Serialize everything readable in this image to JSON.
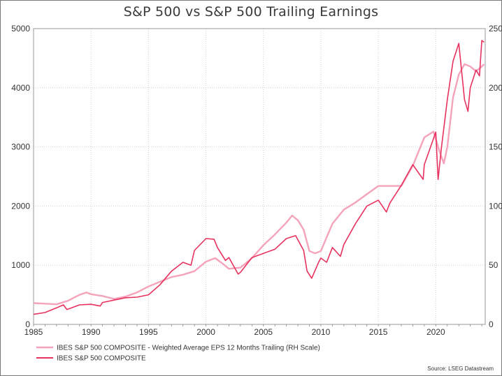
{
  "chart_data": {
    "type": "line",
    "title": "S&P 500 vs S&P 500 Trailing Earnings",
    "source": "Source: LSEG Datastream",
    "x_ticks": [
      "1985",
      "1990",
      "1995",
      "2000",
      "2005",
      "2010",
      "2015",
      "2020"
    ],
    "xlim": [
      1985,
      2024.3
    ],
    "y_left": {
      "lim": [
        0,
        5000
      ],
      "ticks": [
        "0",
        "1000",
        "2000",
        "3000",
        "4000",
        "5000"
      ]
    },
    "y_right": {
      "lim": [
        0,
        250
      ],
      "ticks": [
        "0",
        "50",
        "100",
        "150",
        "200",
        "250"
      ]
    },
    "grid": true,
    "legend_position": "bottom-left",
    "colors": {
      "eps": "#f5a3ba",
      "index": "#e8315e"
    },
    "series": [
      {
        "name": "IBES S&P 500 COMPOSITE - Weighted Average EPS 12 Months Trailing (RH Scale)",
        "axis": "right",
        "x": [
          1985,
          1986,
          1987,
          1988,
          1989,
          1989.6,
          1990,
          1991,
          1992,
          1993,
          1994,
          1995,
          1996,
          1997,
          1998,
          1999,
          2000,
          2000.8,
          2001.5,
          2002,
          2003,
          2004,
          2005,
          2006,
          2007,
          2007.5,
          2008,
          2008.5,
          2009,
          2009.5,
          2010,
          2011,
          2012,
          2013,
          2014,
          2015,
          2016,
          2017,
          2018,
          2019,
          2019.8,
          2020.3,
          2020.7,
          2021,
          2021.5,
          2022,
          2022.5,
          2023,
          2023.5,
          2024,
          2024.2
        ],
        "y": [
          18,
          17.5,
          17,
          20,
          25,
          27,
          25.5,
          24,
          21.5,
          23.5,
          27,
          32,
          36,
          40,
          42,
          45,
          53,
          56,
          51,
          47,
          48,
          56,
          67,
          76,
          86,
          92,
          88,
          80,
          62,
          60,
          62,
          85,
          97,
          103,
          110,
          117,
          117,
          117,
          134,
          158,
          163,
          147,
          136,
          150,
          192,
          211,
          220,
          218,
          214,
          218,
          220
        ]
      },
      {
        "name": "IBES S&P 500 COMPOSITE",
        "axis": "left",
        "x": [
          1985,
          1986,
          1987,
          1987.6,
          1987.9,
          1989,
          1990,
          1990.8,
          1991,
          1992,
          1993,
          1994,
          1995,
          1996,
          1997,
          1998,
          1998.7,
          1999,
          2000,
          2000.7,
          2001,
          2001.7,
          2002,
          2002.8,
          2003,
          2004,
          2005,
          2006,
          2007,
          2007.8,
          2008.5,
          2008.8,
          2009.2,
          2009.8,
          2010,
          2010.5,
          2011,
          2011.7,
          2012,
          2013,
          2014,
          2015,
          2015.7,
          2016,
          2017,
          2018,
          2018.9,
          2019,
          2020,
          2020.2,
          2020.5,
          2021,
          2021.5,
          2022,
          2022.5,
          2022.8,
          2023,
          2023.5,
          2023.8,
          2024,
          2024.2
        ],
        "y": [
          170,
          200,
          280,
          330,
          250,
          330,
          340,
          310,
          370,
          410,
          450,
          460,
          500,
          670,
          900,
          1050,
          1000,
          1250,
          1450,
          1440,
          1300,
          1080,
          1130,
          850,
          880,
          1130,
          1200,
          1270,
          1450,
          1500,
          1250,
          900,
          780,
          1050,
          1120,
          1050,
          1300,
          1150,
          1350,
          1700,
          2000,
          2100,
          1900,
          2050,
          2350,
          2700,
          2450,
          2700,
          3250,
          2450,
          3000,
          3800,
          4450,
          4750,
          3800,
          3600,
          4000,
          4300,
          4200,
          4800,
          4770
        ]
      }
    ]
  }
}
